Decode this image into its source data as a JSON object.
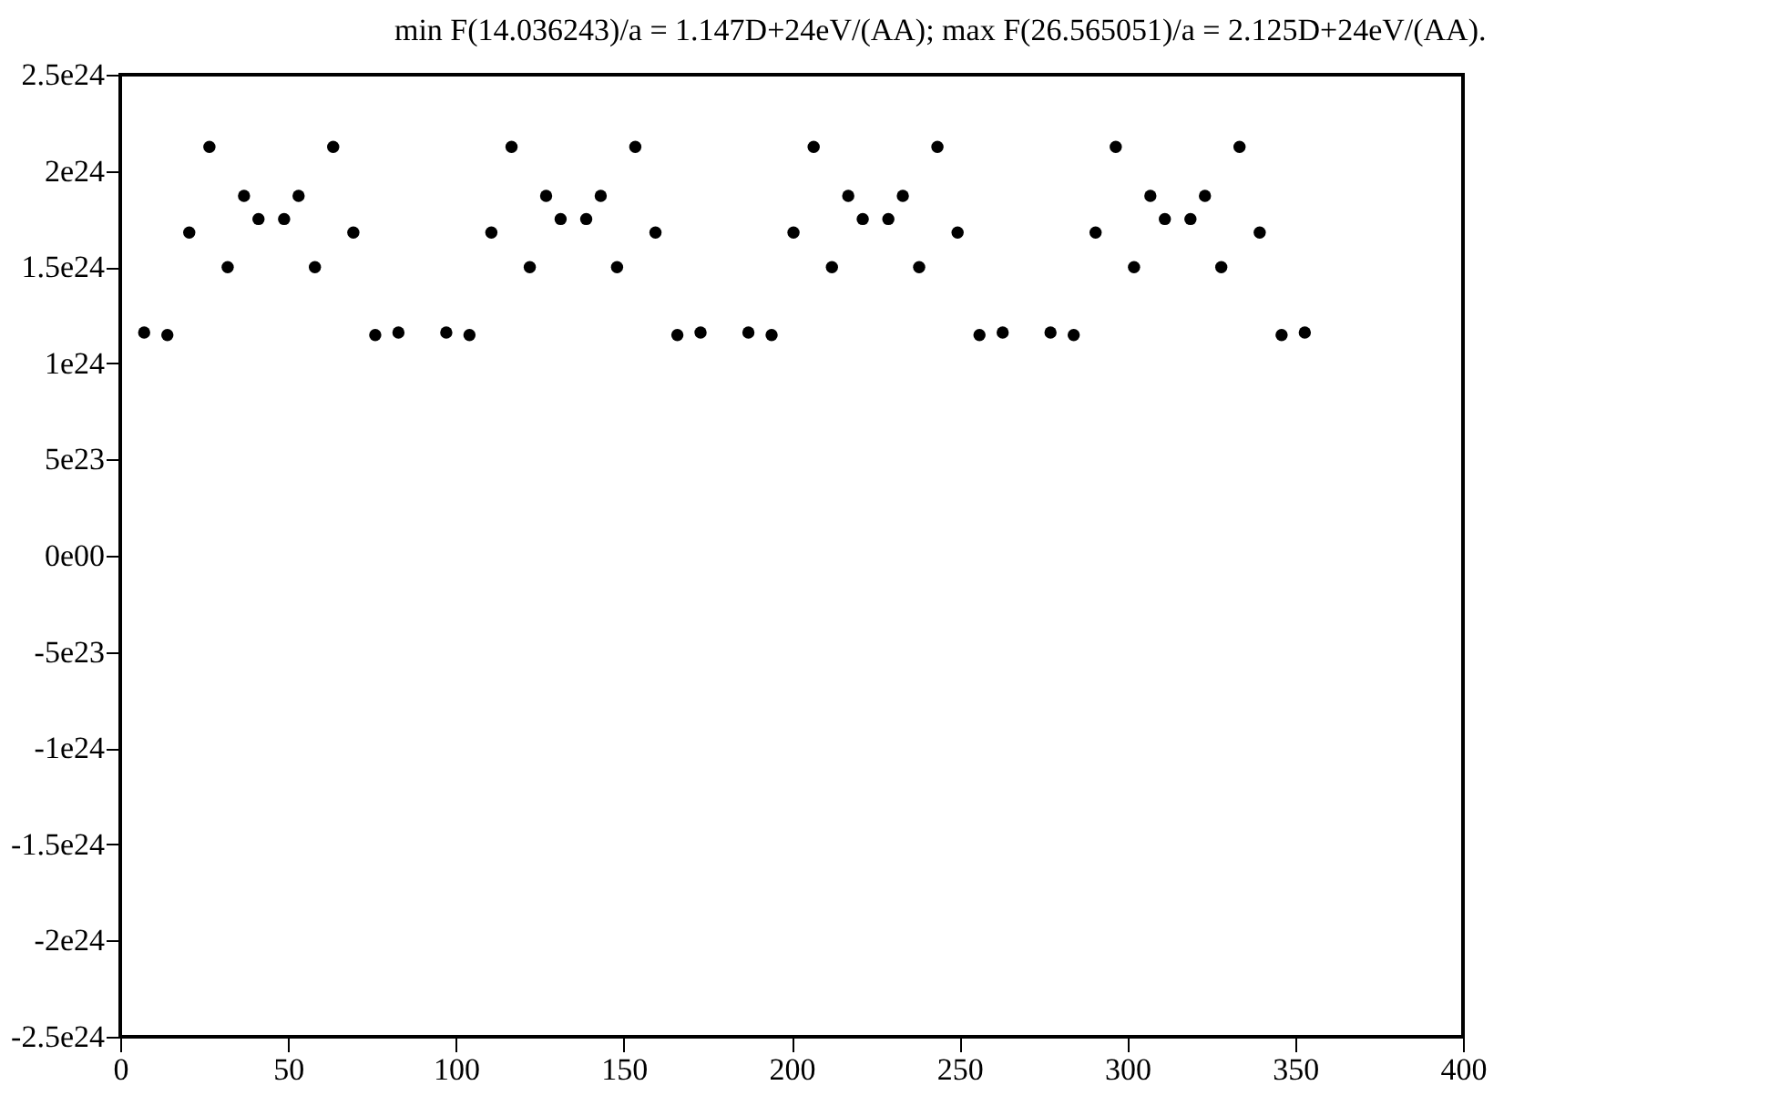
{
  "chart_data": {
    "type": "scatter",
    "title": "min F(14.036243)/a = 1.147D+24eV/(AA); max F(26.565051)/a = 2.125D+24eV/(AA).",
    "x": [
      7.125,
      14.036,
      20.556,
      26.565,
      32.005,
      36.87,
      41.186,
      48.814,
      53.13,
      57.995,
      63.435,
      69.444,
      75.964,
      82.875,
      97.125,
      104.036,
      110.556,
      116.565,
      122.005,
      126.87,
      131.186,
      138.814,
      143.13,
      147.995,
      153.435,
      159.444,
      165.964,
      172.875,
      187.125,
      194.036,
      200.556,
      206.565,
      212.005,
      216.87,
      221.186,
      228.814,
      233.13,
      237.995,
      243.435,
      249.444,
      255.964,
      262.875,
      277.125,
      284.036,
      290.556,
      296.565,
      302.005,
      306.87,
      311.186,
      318.814,
      323.13,
      327.995,
      333.435,
      339.444,
      345.964,
      352.875
    ],
    "series": [
      {
        "color": "#000000",
        "values": [
          1.16e+24,
          1.147e+24,
          1.68e+24,
          2.125e+24,
          1.5e+24,
          1.87e+24,
          1.75e+24,
          1.75e+24,
          1.87e+24,
          1.5e+24,
          2.125e+24,
          1.68e+24,
          1.147e+24,
          1.16e+24,
          1.16e+24,
          1.147e+24,
          1.68e+24,
          2.125e+24,
          1.5e+24,
          1.87e+24,
          1.75e+24,
          1.75e+24,
          1.87e+24,
          1.5e+24,
          2.125e+24,
          1.68e+24,
          1.147e+24,
          1.16e+24,
          1.16e+24,
          1.147e+24,
          1.68e+24,
          2.125e+24,
          1.5e+24,
          1.87e+24,
          1.75e+24,
          1.75e+24,
          1.87e+24,
          1.5e+24,
          2.125e+24,
          1.68e+24,
          1.147e+24,
          1.16e+24,
          1.16e+24,
          1.147e+24,
          1.68e+24,
          2.125e+24,
          1.5e+24,
          1.87e+24,
          1.75e+24,
          1.75e+24,
          1.87e+24,
          1.5e+24,
          2.125e+24,
          1.68e+24,
          1.147e+24,
          1.16e+24
        ]
      }
    ],
    "marker": "circle",
    "xlim": [
      0,
      400
    ],
    "xticks": [
      0,
      50,
      100,
      150,
      200,
      250,
      300,
      350,
      400
    ],
    "ylim": [
      -2.5e+24,
      2.5e+24
    ],
    "yticks": [
      {
        "value": -2.5e+24,
        "label": "-2.5e24"
      },
      {
        "value": -2e+24,
        "label": "-2e24"
      },
      {
        "value": -1.5e+24,
        "label": "-1.5e24"
      },
      {
        "value": -1e+24,
        "label": "-1e24"
      },
      {
        "value": -5e+23,
        "label": "-5e23"
      },
      {
        "value": 0,
        "label": "0e00"
      },
      {
        "value": 5e+23,
        "label": "5e23"
      },
      {
        "value": 1e+24,
        "label": "1e24"
      },
      {
        "value": 1.5e+24,
        "label": "1.5e24"
      },
      {
        "value": 2e+24,
        "label": "2e24"
      },
      {
        "value": 2.5e+24,
        "label": "2.5e24"
      }
    ],
    "grid": false
  }
}
